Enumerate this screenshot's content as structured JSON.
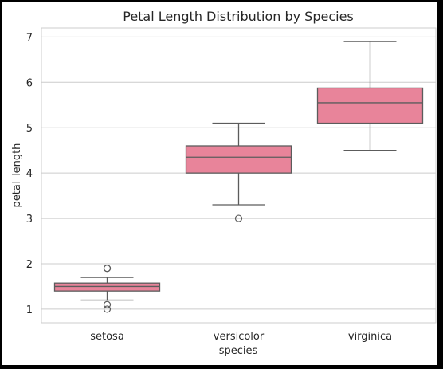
{
  "chart_data": {
    "type": "box",
    "title": "Petal Length Distribution by Species",
    "xlabel": "species",
    "ylabel": "petal_length",
    "ylim": [
      0.7,
      7.2
    ],
    "yticks": [
      "1",
      "2",
      "3",
      "4",
      "5",
      "6",
      "7"
    ],
    "grid": "horizontal",
    "categories": [
      "setosa",
      "versicolor",
      "virginica"
    ],
    "boxes": [
      {
        "category": "setosa",
        "whisker_low": 1.2,
        "q1": 1.4,
        "median": 1.5,
        "q3": 1.575,
        "whisker_high": 1.7,
        "outliers": [
          1.0,
          1.1,
          1.9,
          1.9
        ]
      },
      {
        "category": "versicolor",
        "whisker_low": 3.3,
        "q1": 4.0,
        "median": 4.35,
        "q3": 4.6,
        "whisker_high": 5.1,
        "outliers": [
          3.0
        ]
      },
      {
        "category": "virginica",
        "whisker_low": 4.5,
        "q1": 5.1,
        "median": 5.55,
        "q3": 5.875,
        "whisker_high": 6.9,
        "outliers": []
      }
    ],
    "colors": {
      "box": "#e8849a",
      "edge": "#5c5c5c",
      "grid": "#cccccc"
    }
  }
}
